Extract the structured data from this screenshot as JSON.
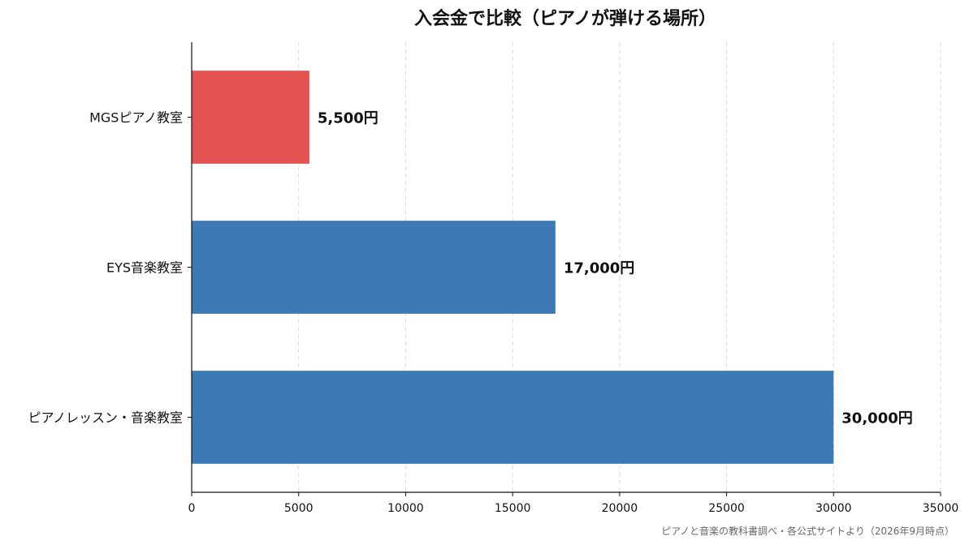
{
  "chart_data": {
    "type": "bar",
    "orientation": "horizontal",
    "title": "入会金で比較（ピアノが弾ける場所）",
    "categories": [
      "MGSピアノ教室",
      "EYS音楽教室",
      "ピアノレッスン・音楽教室"
    ],
    "values": [
      5500,
      17000,
      30000
    ],
    "data_labels": [
      "5,500円",
      "17,000円",
      "30,000円"
    ],
    "bar_colors": [
      "#e45252",
      "#3d7ab5",
      "#3d7ab5"
    ],
    "xlim": [
      0,
      35000
    ],
    "x_ticks": [
      0,
      5000,
      10000,
      15000,
      20000,
      25000,
      30000,
      35000
    ],
    "x_tick_labels": [
      "0",
      "5000",
      "10000",
      "15000",
      "20000",
      "25000",
      "30000",
      "35000"
    ],
    "xlabel": "",
    "ylabel": "",
    "grid": "vertical-dashed",
    "legend": "none"
  },
  "source_note": "ピアノと音楽の教科書調べ・各公式サイトより（2026年9月時点）"
}
